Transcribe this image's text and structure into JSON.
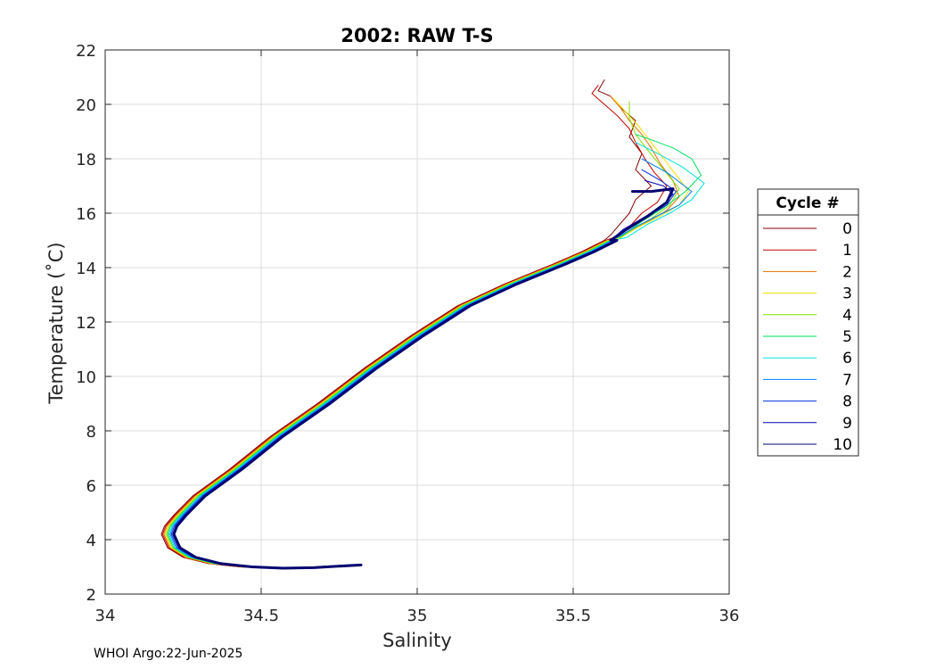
{
  "chart_data": {
    "type": "line",
    "title": "2002: RAW T-S",
    "xlabel": "Salinity",
    "ylabel": "Temperature (˚C)",
    "xlim": [
      34,
      36
    ],
    "ylim": [
      2,
      22
    ],
    "xticks": [
      34,
      34.5,
      35,
      35.5,
      36
    ],
    "yticks": [
      2,
      4,
      6,
      8,
      10,
      12,
      14,
      16,
      18,
      20,
      22
    ],
    "xtick_labels": [
      "34",
      "34.5",
      "35",
      "35.5",
      "36"
    ],
    "ytick_labels": [
      "2",
      "4",
      "6",
      "8",
      "10",
      "12",
      "14",
      "16",
      "18",
      "20",
      "22"
    ],
    "grid": true,
    "legend": {
      "title": "Cycle #",
      "placement": "outside-right"
    },
    "common_deep_profile": {
      "salinity": [
        35.62,
        35.55,
        35.45,
        35.3,
        35.15,
        35.0,
        34.85,
        34.7,
        34.55,
        34.42,
        34.3,
        34.24,
        34.21,
        34.2,
        34.22,
        34.27,
        34.35,
        34.45,
        34.55,
        34.65,
        34.72,
        34.8
      ],
      "temperature": [
        15.0,
        14.6,
        14.1,
        13.4,
        12.6,
        11.5,
        10.3,
        9.0,
        7.8,
        6.6,
        5.6,
        4.9,
        4.5,
        4.2,
        3.7,
        3.35,
        3.12,
        3.0,
        2.95,
        2.97,
        3.02,
        3.07
      ]
    },
    "series": [
      {
        "name": "0",
        "color": "#800000",
        "salinity": [
          35.6,
          35.58,
          35.62,
          35.65,
          35.7,
          35.68,
          35.72,
          35.7,
          35.75,
          35.7,
          35.68,
          35.65,
          35.62
        ],
        "temperature": [
          20.9,
          20.5,
          20.3,
          19.9,
          19.4,
          18.8,
          18.2,
          17.6,
          17.0,
          16.5,
          16.0,
          15.6,
          15.2
        ]
      },
      {
        "name": "1",
        "color": "#c80000",
        "salinity": [
          35.58,
          35.56,
          35.6,
          35.64,
          35.68,
          35.7,
          35.73,
          35.76,
          35.8,
          35.77,
          35.72,
          35.68,
          35.63
        ],
        "temperature": [
          20.7,
          20.4,
          20.0,
          19.6,
          19.1,
          18.6,
          18.0,
          17.5,
          17.0,
          16.4,
          16.0,
          15.5,
          15.1
        ]
      },
      {
        "name": "2",
        "color": "#e07000",
        "salinity": [
          35.62,
          35.65,
          35.68,
          35.72,
          35.75,
          35.78,
          35.82,
          35.84,
          35.8,
          35.74,
          35.68,
          35.63
        ],
        "temperature": [
          20.3,
          19.9,
          19.4,
          18.9,
          18.4,
          17.8,
          17.2,
          16.6,
          16.1,
          15.7,
          15.3,
          15.0
        ]
      },
      {
        "name": "3",
        "color": "#f0e000",
        "salinity": [
          35.63,
          35.67,
          35.71,
          35.75,
          35.79,
          35.83,
          35.87,
          35.84,
          35.78,
          35.71,
          35.65
        ],
        "temperature": [
          20.2,
          19.7,
          19.2,
          18.6,
          18.0,
          17.4,
          16.8,
          16.3,
          15.9,
          15.5,
          15.1
        ]
      },
      {
        "name": "4",
        "color": "#80e000",
        "salinity": [
          35.68,
          35.68,
          35.7,
          35.74,
          35.79,
          35.84,
          35.81,
          35.75,
          35.69,
          35.64
        ],
        "temperature": [
          20.1,
          19.5,
          18.9,
          18.3,
          17.6,
          16.9,
          16.3,
          15.8,
          15.4,
          15.0
        ]
      },
      {
        "name": "5",
        "color": "#00e060",
        "salinity": [
          35.7,
          35.75,
          35.82,
          35.88,
          35.91,
          35.86,
          35.79,
          35.72,
          35.66
        ],
        "temperature": [
          18.9,
          18.7,
          18.4,
          18.0,
          17.4,
          16.8,
          16.2,
          15.7,
          15.2
        ]
      },
      {
        "name": "6",
        "color": "#00e0e0",
        "salinity": [
          35.7,
          35.77,
          35.85,
          35.92,
          35.88,
          35.81,
          35.74,
          35.67
        ],
        "temperature": [
          18.6,
          18.2,
          17.7,
          17.1,
          16.5,
          16.0,
          15.6,
          15.1
        ]
      },
      {
        "name": "7",
        "color": "#0080ff",
        "salinity": [
          35.72,
          35.8,
          35.88,
          35.84,
          35.77,
          35.7,
          35.64
        ],
        "temperature": [
          18.0,
          17.5,
          16.8,
          16.3,
          15.9,
          15.5,
          15.1
        ]
      },
      {
        "name": "8",
        "color": "#0030e0",
        "salinity": [
          35.72,
          35.78,
          35.83,
          35.8,
          35.74,
          35.68,
          35.63
        ],
        "temperature": [
          17.6,
          17.2,
          16.8,
          16.3,
          15.9,
          15.5,
          15.1
        ]
      },
      {
        "name": "9",
        "color": "#0000b0",
        "salinity": [
          35.73,
          35.79,
          35.82,
          35.78,
          35.72,
          35.66,
          35.62
        ],
        "temperature": [
          17.2,
          17.0,
          16.7,
          16.2,
          15.8,
          15.4,
          15.0
        ]
      },
      {
        "name": "10",
        "color": "#000070",
        "salinity": [
          35.69,
          35.75,
          35.82,
          35.8,
          35.74,
          35.67,
          35.62
        ],
        "temperature": [
          16.8,
          16.8,
          16.9,
          16.4,
          15.9,
          15.4,
          15.0
        ]
      }
    ]
  },
  "footer": {
    "text": "WHOI Argo:22-Jun-2025"
  }
}
